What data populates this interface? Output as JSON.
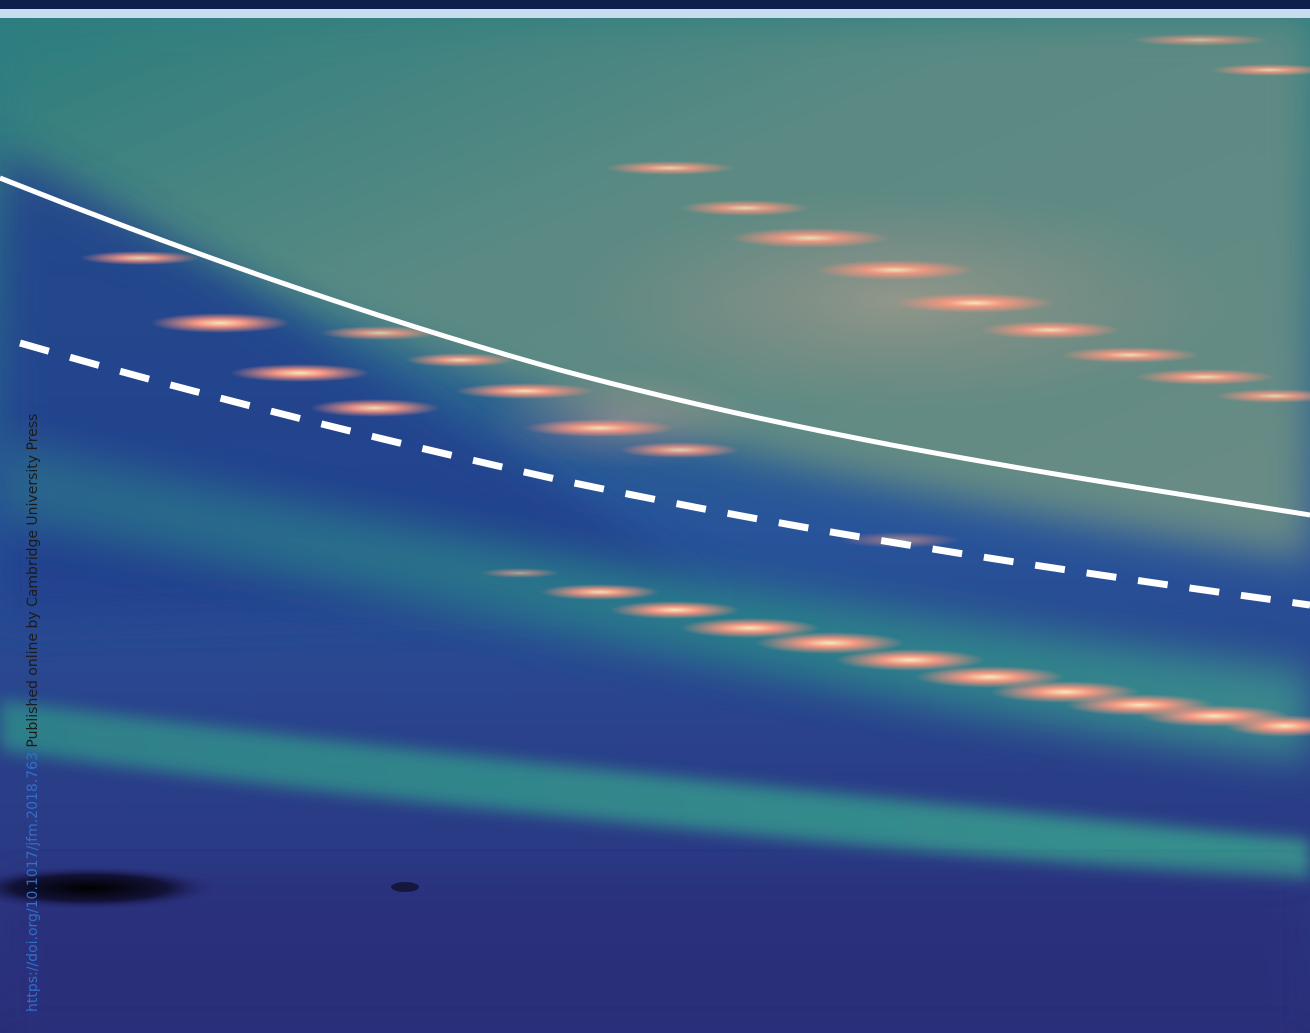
{
  "credit": {
    "doi_link": "https://doi.org/10.1017/jfm.2018.763",
    "published_text": " Published online by Cambridge University Press"
  },
  "palette": {
    "bar_dark": "#0d1f4f",
    "bar_light": "#c8dcef",
    "deep_blue": "#2a2f7a",
    "mid_blue": "#234d8e",
    "teal": "#2b8a88",
    "grey_teal": "#5f8f86",
    "salmon": "#ff8f7a",
    "highlight": "#ffe9b0",
    "line_color": "#ffffff"
  }
}
